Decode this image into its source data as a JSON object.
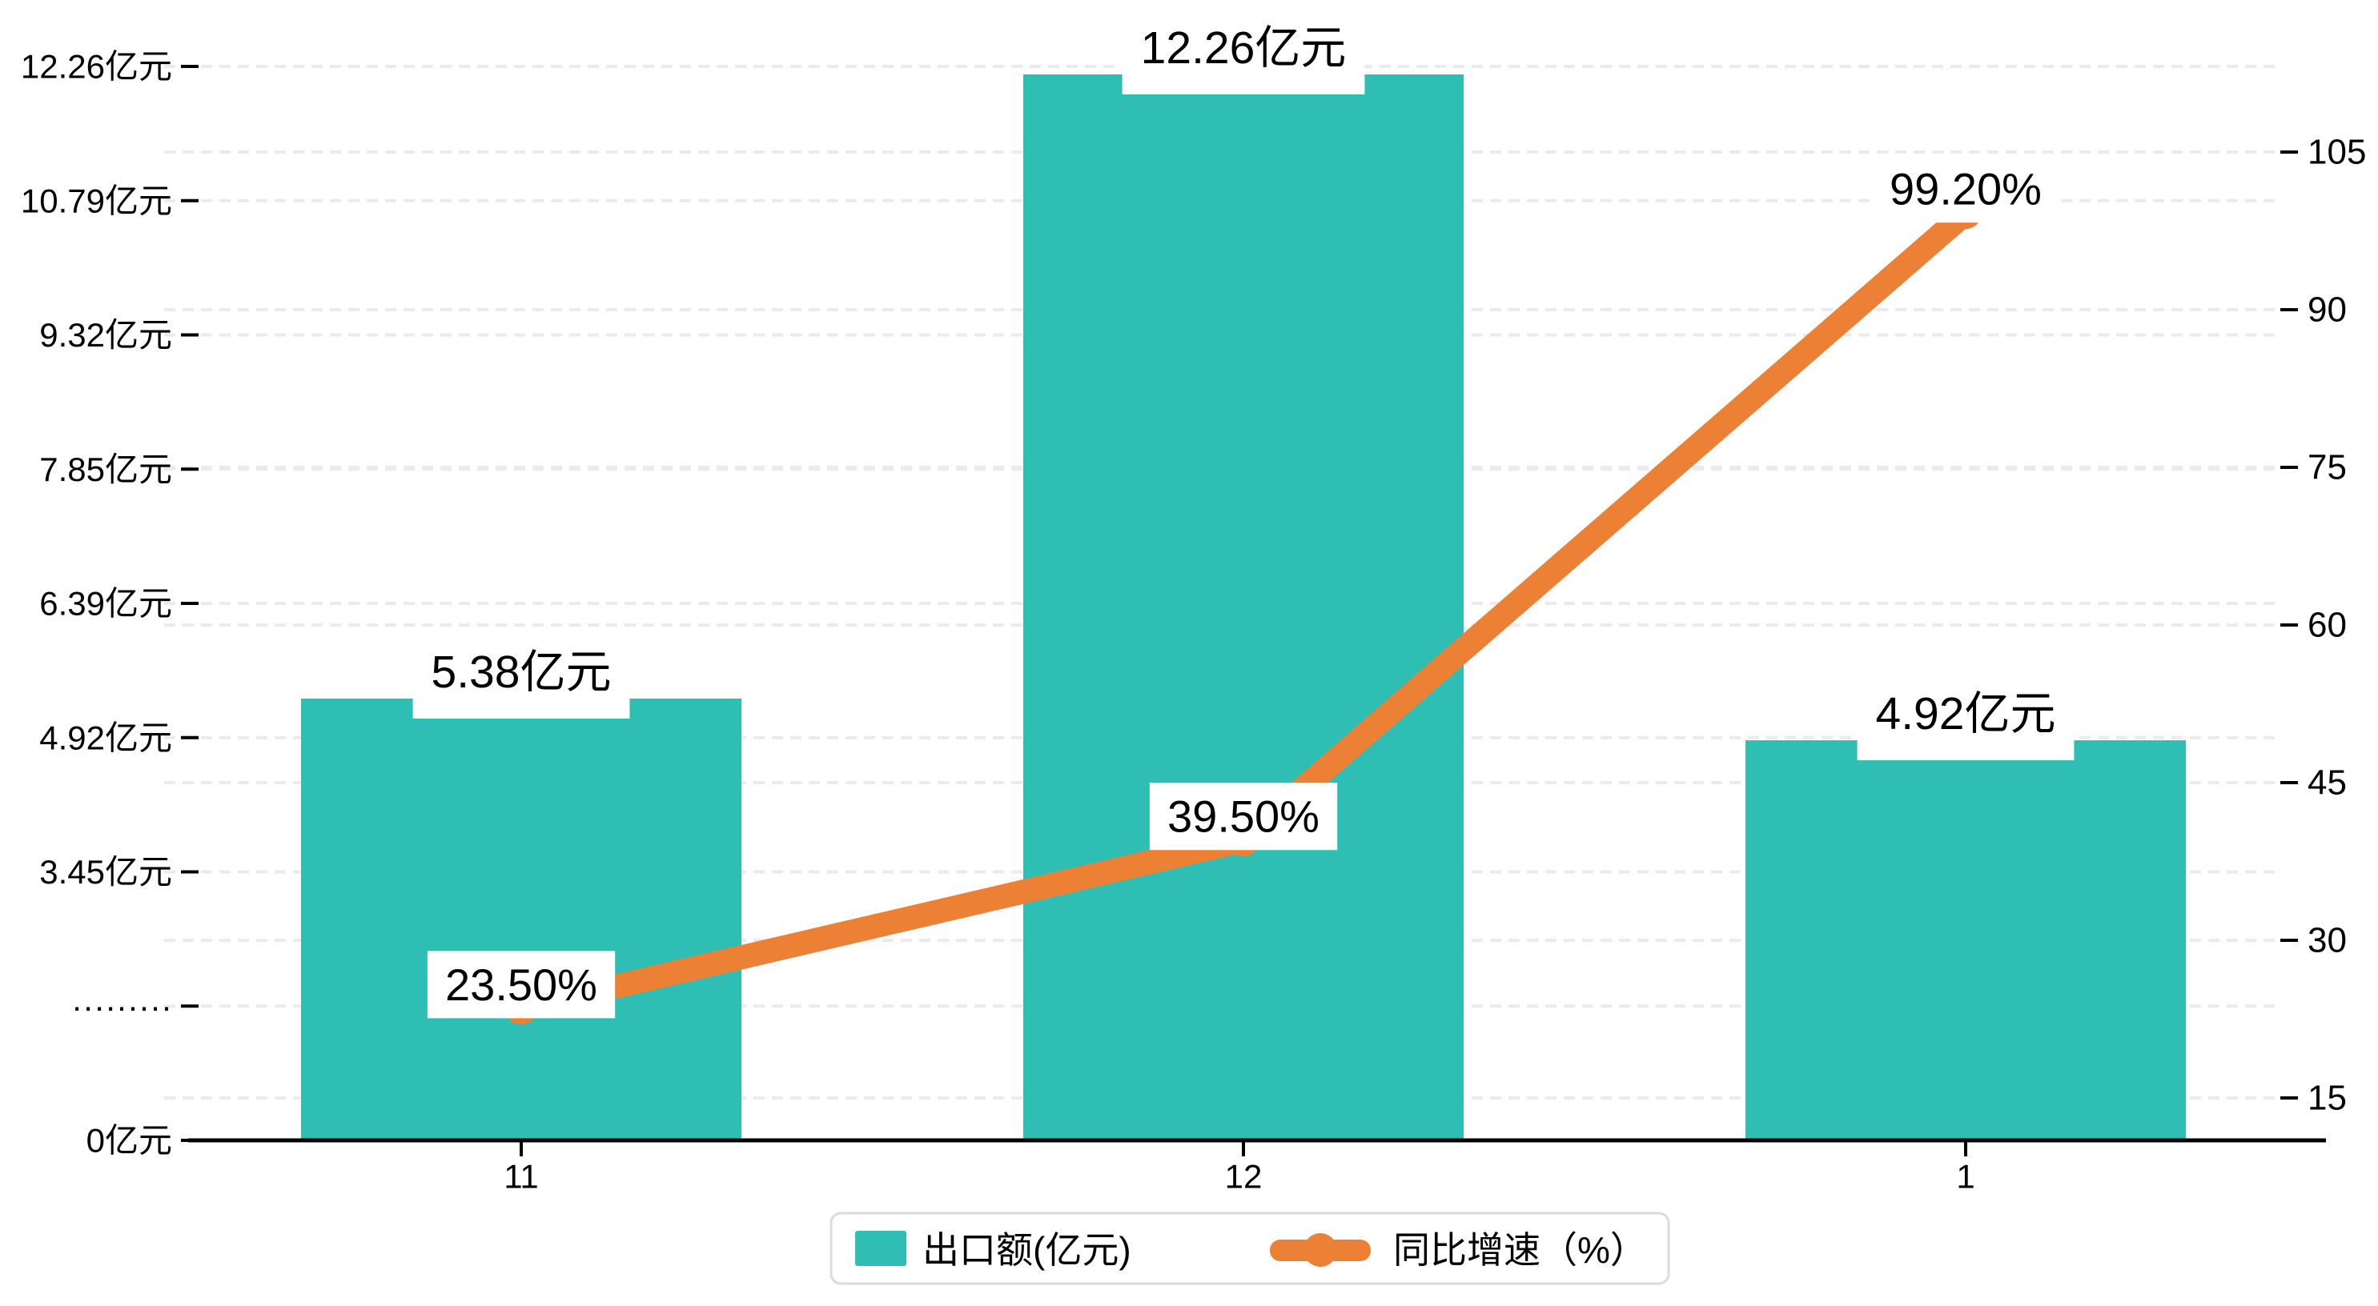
{
  "chart_data": {
    "type": "combo",
    "title": "",
    "categories": [
      "11",
      "12",
      "1"
    ],
    "series": [
      {
        "name": "出口额(亿元)",
        "type": "bar",
        "values": [
          5.38,
          12.26,
          4.92
        ],
        "data_labels": [
          "5.38亿元",
          "12.26亿元",
          "4.92亿元"
        ],
        "color": "#2FBEB3"
      },
      {
        "name": "同比增速（%）",
        "type": "line",
        "values": [
          23.5,
          39.5,
          99.2
        ],
        "data_labels": [
          "23.50%",
          "39.50%",
          "99.20%"
        ],
        "color": "#EC8135"
      }
    ],
    "left_axis": {
      "tick_labels": [
        "12.26亿元",
        "10.79亿元",
        "9.32亿元",
        "7.85亿元",
        "6.39亿元",
        "4.92亿元",
        "3.45亿元",
        "·········",
        "0亿元"
      ],
      "unit": "亿元"
    },
    "right_axis": {
      "tick_labels": [
        "105",
        "90",
        "75",
        "60",
        "45",
        "30",
        "15"
      ],
      "min": 15,
      "max": 105,
      "unit": "%"
    },
    "legend_position": "bottom",
    "grid": "dashed horizontal"
  },
  "legend": {
    "items": [
      {
        "label": "出口额(亿元)",
        "color": "#2FBEB3",
        "marker": "rect"
      },
      {
        "label": "同比增速（%）",
        "color": "#EC8135",
        "marker": "line-circle"
      }
    ]
  },
  "colors": {
    "bar": "#2FBEB3",
    "line": "#EC8135",
    "grid": "#EBEBEB",
    "axis": "#000000",
    "text": "#000000",
    "label_bg": "#FFFFFF",
    "legend_border": "#DCDCDC",
    "background": "#FFFFFF"
  }
}
